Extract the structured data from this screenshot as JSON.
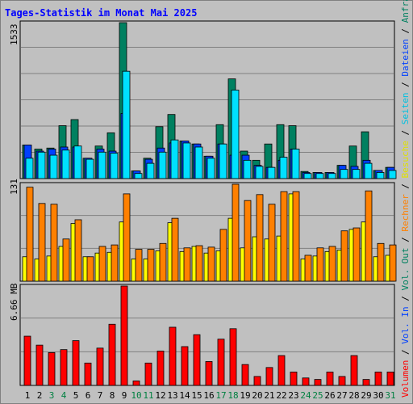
{
  "title": "Tages-Statistik im Monat Mai 2025",
  "colors": {
    "background": "#c0c0c0",
    "panel": "#c0c0c0",
    "grid": "#808080",
    "title": "#0000ff",
    "anfragen": "#008060",
    "dateien": "#0040ff",
    "seiten": "#00e0ff",
    "besuche": "#ffff00",
    "rechner": "#ff8000",
    "volumen": "#ff0000",
    "weekend": "#008040",
    "weekday": "#000000"
  },
  "chart_data": [
    {
      "type": "bar",
      "panel": "top",
      "max_label": "1533",
      "ylim": [
        0,
        1533
      ],
      "x": [
        1,
        2,
        3,
        4,
        5,
        6,
        7,
        8,
        9,
        10,
        11,
        12,
        13,
        14,
        15,
        16,
        17,
        18,
        19,
        20,
        21,
        22,
        23,
        24,
        25,
        26,
        27,
        28,
        29,
        30,
        31
      ],
      "weekend_days": [
        3,
        4,
        10,
        11,
        17,
        18,
        24,
        25,
        31
      ],
      "series": [
        {
          "name": "Anfragen",
          "color": "#008060",
          "values": [
            330,
            290,
            300,
            520,
            580,
            200,
            320,
            450,
            1533,
            75,
            200,
            510,
            630,
            370,
            340,
            220,
            530,
            980,
            270,
            180,
            340,
            530,
            520,
            70,
            60,
            60,
            130,
            320,
            460,
            80,
            110
          ]
        },
        {
          "name": "Dateien",
          "color": "#0040ff",
          "values": [
            330,
            270,
            290,
            310,
            310,
            200,
            290,
            270,
            640,
            75,
            190,
            300,
            350,
            370,
            340,
            220,
            340,
            230,
            230,
            130,
            110,
            180,
            290,
            60,
            60,
            60,
            130,
            120,
            180,
            80,
            110
          ]
        },
        {
          "name": "Seiten",
          "color": "#00e0ff",
          "values": [
            200,
            260,
            230,
            280,
            320,
            190,
            260,
            250,
            1055,
            50,
            150,
            260,
            380,
            350,
            310,
            200,
            340,
            870,
            180,
            120,
            110,
            210,
            290,
            50,
            50,
            50,
            90,
            90,
            150,
            60,
            80
          ]
        }
      ]
    },
    {
      "type": "bar",
      "panel": "middle",
      "max_label": "131",
      "ylim": [
        0,
        131
      ],
      "x": [
        1,
        2,
        3,
        4,
        5,
        6,
        7,
        8,
        9,
        10,
        11,
        12,
        13,
        14,
        15,
        16,
        17,
        18,
        19,
        20,
        21,
        22,
        23,
        24,
        25,
        26,
        27,
        28,
        29,
        30,
        31
      ],
      "series": [
        {
          "name": "Besuche",
          "color": "#ffff00",
          "values": [
            33,
            30,
            34,
            47,
            78,
            33,
            38,
            39,
            80,
            30,
            30,
            41,
            79,
            40,
            47,
            38,
            41,
            85,
            45,
            60,
            57,
            61,
            118,
            30,
            34,
            40,
            42,
            70,
            80,
            33,
            35
          ]
        },
        {
          "name": "Rechner",
          "color": "#ff8000",
          "values": [
            127,
            105,
            104,
            57,
            83,
            33,
            47,
            49,
            118,
            43,
            43,
            51,
            85,
            45,
            48,
            46,
            70,
            131,
            109,
            117,
            104,
            121,
            121,
            35,
            45,
            47,
            68,
            72,
            122,
            51,
            49
          ]
        }
      ]
    },
    {
      "type": "bar",
      "panel": "bottom",
      "max_label": "6.66 MB",
      "unit": "MB",
      "ylim": [
        0,
        6.66
      ],
      "x": [
        1,
        2,
        3,
        4,
        5,
        6,
        7,
        8,
        9,
        10,
        11,
        12,
        13,
        14,
        15,
        16,
        17,
        18,
        19,
        20,
        21,
        22,
        23,
        24,
        25,
        26,
        27,
        28,
        29,
        30,
        31
      ],
      "series": [
        {
          "name": "Volumen",
          "color": "#ff0000",
          "values": [
            3.3,
            2.7,
            2.2,
            2.4,
            3.0,
            1.5,
            2.5,
            4.1,
            6.66,
            0.3,
            1.5,
            2.3,
            3.9,
            2.6,
            3.4,
            1.6,
            3.1,
            3.8,
            1.4,
            0.6,
            1.2,
            2.0,
            0.9,
            0.5,
            0.4,
            0.9,
            0.6,
            2.0,
            0.4,
            0.9,
            0.9
          ]
        }
      ]
    }
  ],
  "right_axis": {
    "top": [
      "Anfragen",
      "Dateien",
      "Seiten"
    ],
    "middle": [
      "Besuche",
      "Rechner",
      "Vol. Out",
      "Vol. In",
      "Volumen"
    ],
    "separator": " / "
  }
}
